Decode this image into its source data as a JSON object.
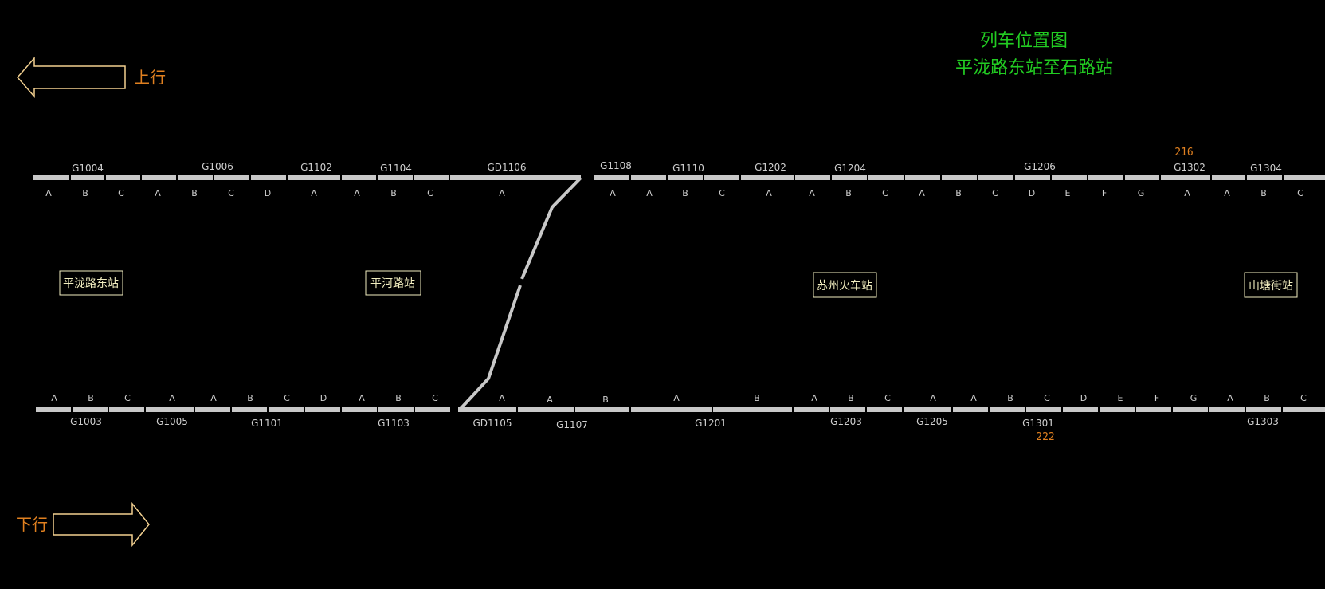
{
  "title": {
    "line1": "列车位置图",
    "line2": "平泷路东站至石路站"
  },
  "colors": {
    "background": "#000000",
    "track": "#c8c8c8",
    "title": "#22cc22",
    "direction": "#e08020",
    "station_text": "#f2eec0"
  },
  "directions": {
    "up": {
      "label": "上行",
      "arrow": "left-arrow-icon"
    },
    "down": {
      "label": "下行",
      "arrow": "right-arrow-icon"
    }
  },
  "stations": [
    "平泷路东站",
    "平河路站",
    "苏州火车站",
    "山塘街站"
  ],
  "up_track": {
    "blocks": [
      "G1004",
      "G1006",
      "G1102",
      "G1104",
      "GD1106",
      "G1108",
      "G1110",
      "G1202",
      "G1204",
      "G1206",
      "G1302",
      "G1304"
    ],
    "sections": [
      "A",
      "B",
      "C",
      "A",
      "B",
      "C",
      "D",
      "A",
      "A",
      "B",
      "C",
      "A",
      "A",
      "A",
      "B",
      "C",
      "A",
      "A",
      "B",
      "C",
      "A",
      "B",
      "C",
      "D",
      "E",
      "F",
      "G",
      "A",
      "A",
      "B",
      "C"
    ]
  },
  "down_track": {
    "blocks": [
      "G1003",
      "G1005",
      "G1101",
      "G1103",
      "GD1105",
      "G1107",
      "G1201",
      "G1203",
      "G1205",
      "G1301",
      "G1303"
    ],
    "sections": [
      "A",
      "B",
      "C",
      "A",
      "A",
      "B",
      "C",
      "D",
      "A",
      "B",
      "C",
      "A",
      "A",
      "B",
      "A",
      "B",
      "A",
      "B",
      "C",
      "A",
      "A",
      "B",
      "C",
      "D",
      "E",
      "F",
      "G",
      "A",
      "B",
      "C"
    ]
  },
  "trains": [
    {
      "id": "216",
      "track": "up"
    },
    {
      "id": "222",
      "track": "down"
    }
  ]
}
